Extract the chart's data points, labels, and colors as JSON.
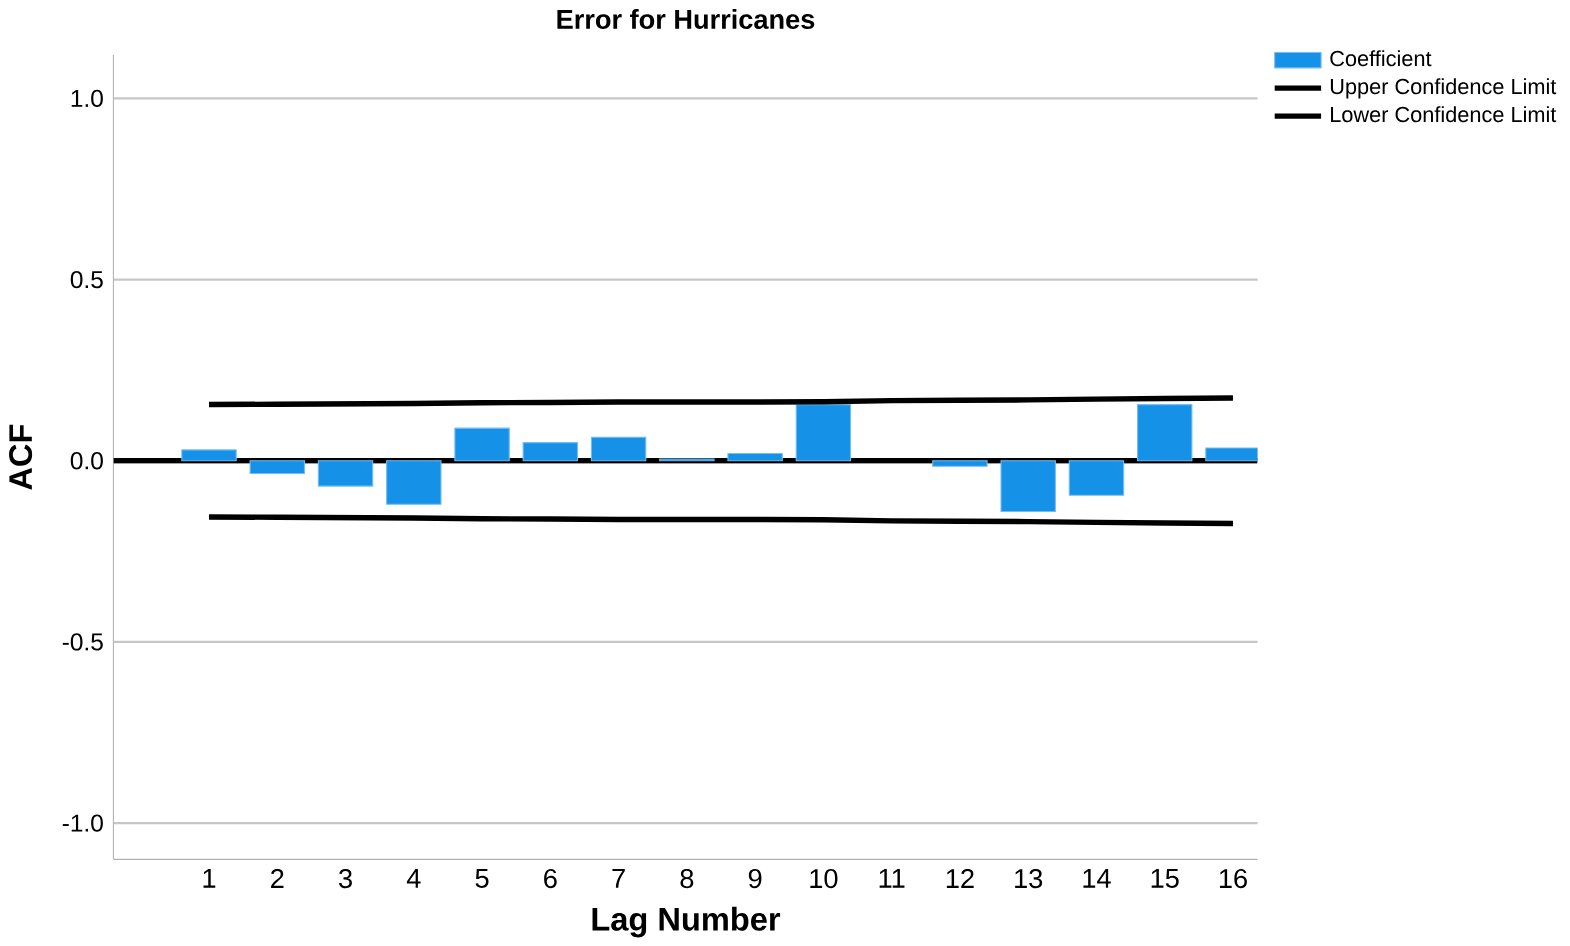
{
  "chart_data": {
    "type": "bar",
    "title": "Error for Hurricanes",
    "xlabel": "Lag Number",
    "ylabel": "ACF",
    "categories": [
      "1",
      "2",
      "3",
      "4",
      "5",
      "6",
      "7",
      "8",
      "9",
      "10",
      "11",
      "12",
      "13",
      "14",
      "15",
      "16"
    ],
    "series": [
      {
        "name": "Coefficient",
        "color": "#1591e8",
        "values": [
          0.03,
          -0.035,
          -0.07,
          -0.12,
          0.09,
          0.05,
          0.065,
          0.005,
          0.02,
          0.155,
          null,
          -0.015,
          -0.14,
          -0.095,
          0.155,
          0.035
        ]
      },
      {
        "name": "Upper Confidence Limit",
        "type": "line",
        "color": "#000000",
        "values": [
          0.155,
          0.156,
          0.157,
          0.158,
          0.16,
          0.161,
          0.162,
          0.162,
          0.162,
          0.163,
          0.166,
          0.167,
          0.168,
          0.17,
          0.172,
          0.173
        ]
      },
      {
        "name": "Lower Confidence Limit",
        "type": "line",
        "color": "#000000",
        "values": [
          -0.155,
          -0.156,
          -0.157,
          -0.158,
          -0.16,
          -0.161,
          -0.162,
          -0.162,
          -0.162,
          -0.163,
          -0.166,
          -0.167,
          -0.168,
          -0.17,
          -0.172,
          -0.173
        ]
      }
    ],
    "ylim": [
      -1.1,
      1.12
    ],
    "yticks": [
      {
        "value": -1.0,
        "label": "-1.0"
      },
      {
        "value": -0.5,
        "label": "-0.5"
      },
      {
        "value": 0,
        "label": "0.0"
      },
      {
        "value": 0.5,
        "label": "0.5"
      },
      {
        "value": 1.0,
        "label": "1.0"
      }
    ],
    "ref_lines": [
      {
        "axis": "y",
        "value": 0,
        "color": "#000000"
      }
    ],
    "grid": "y",
    "legend": "top right",
    "marker": "none",
    "line_style": "solid"
  }
}
